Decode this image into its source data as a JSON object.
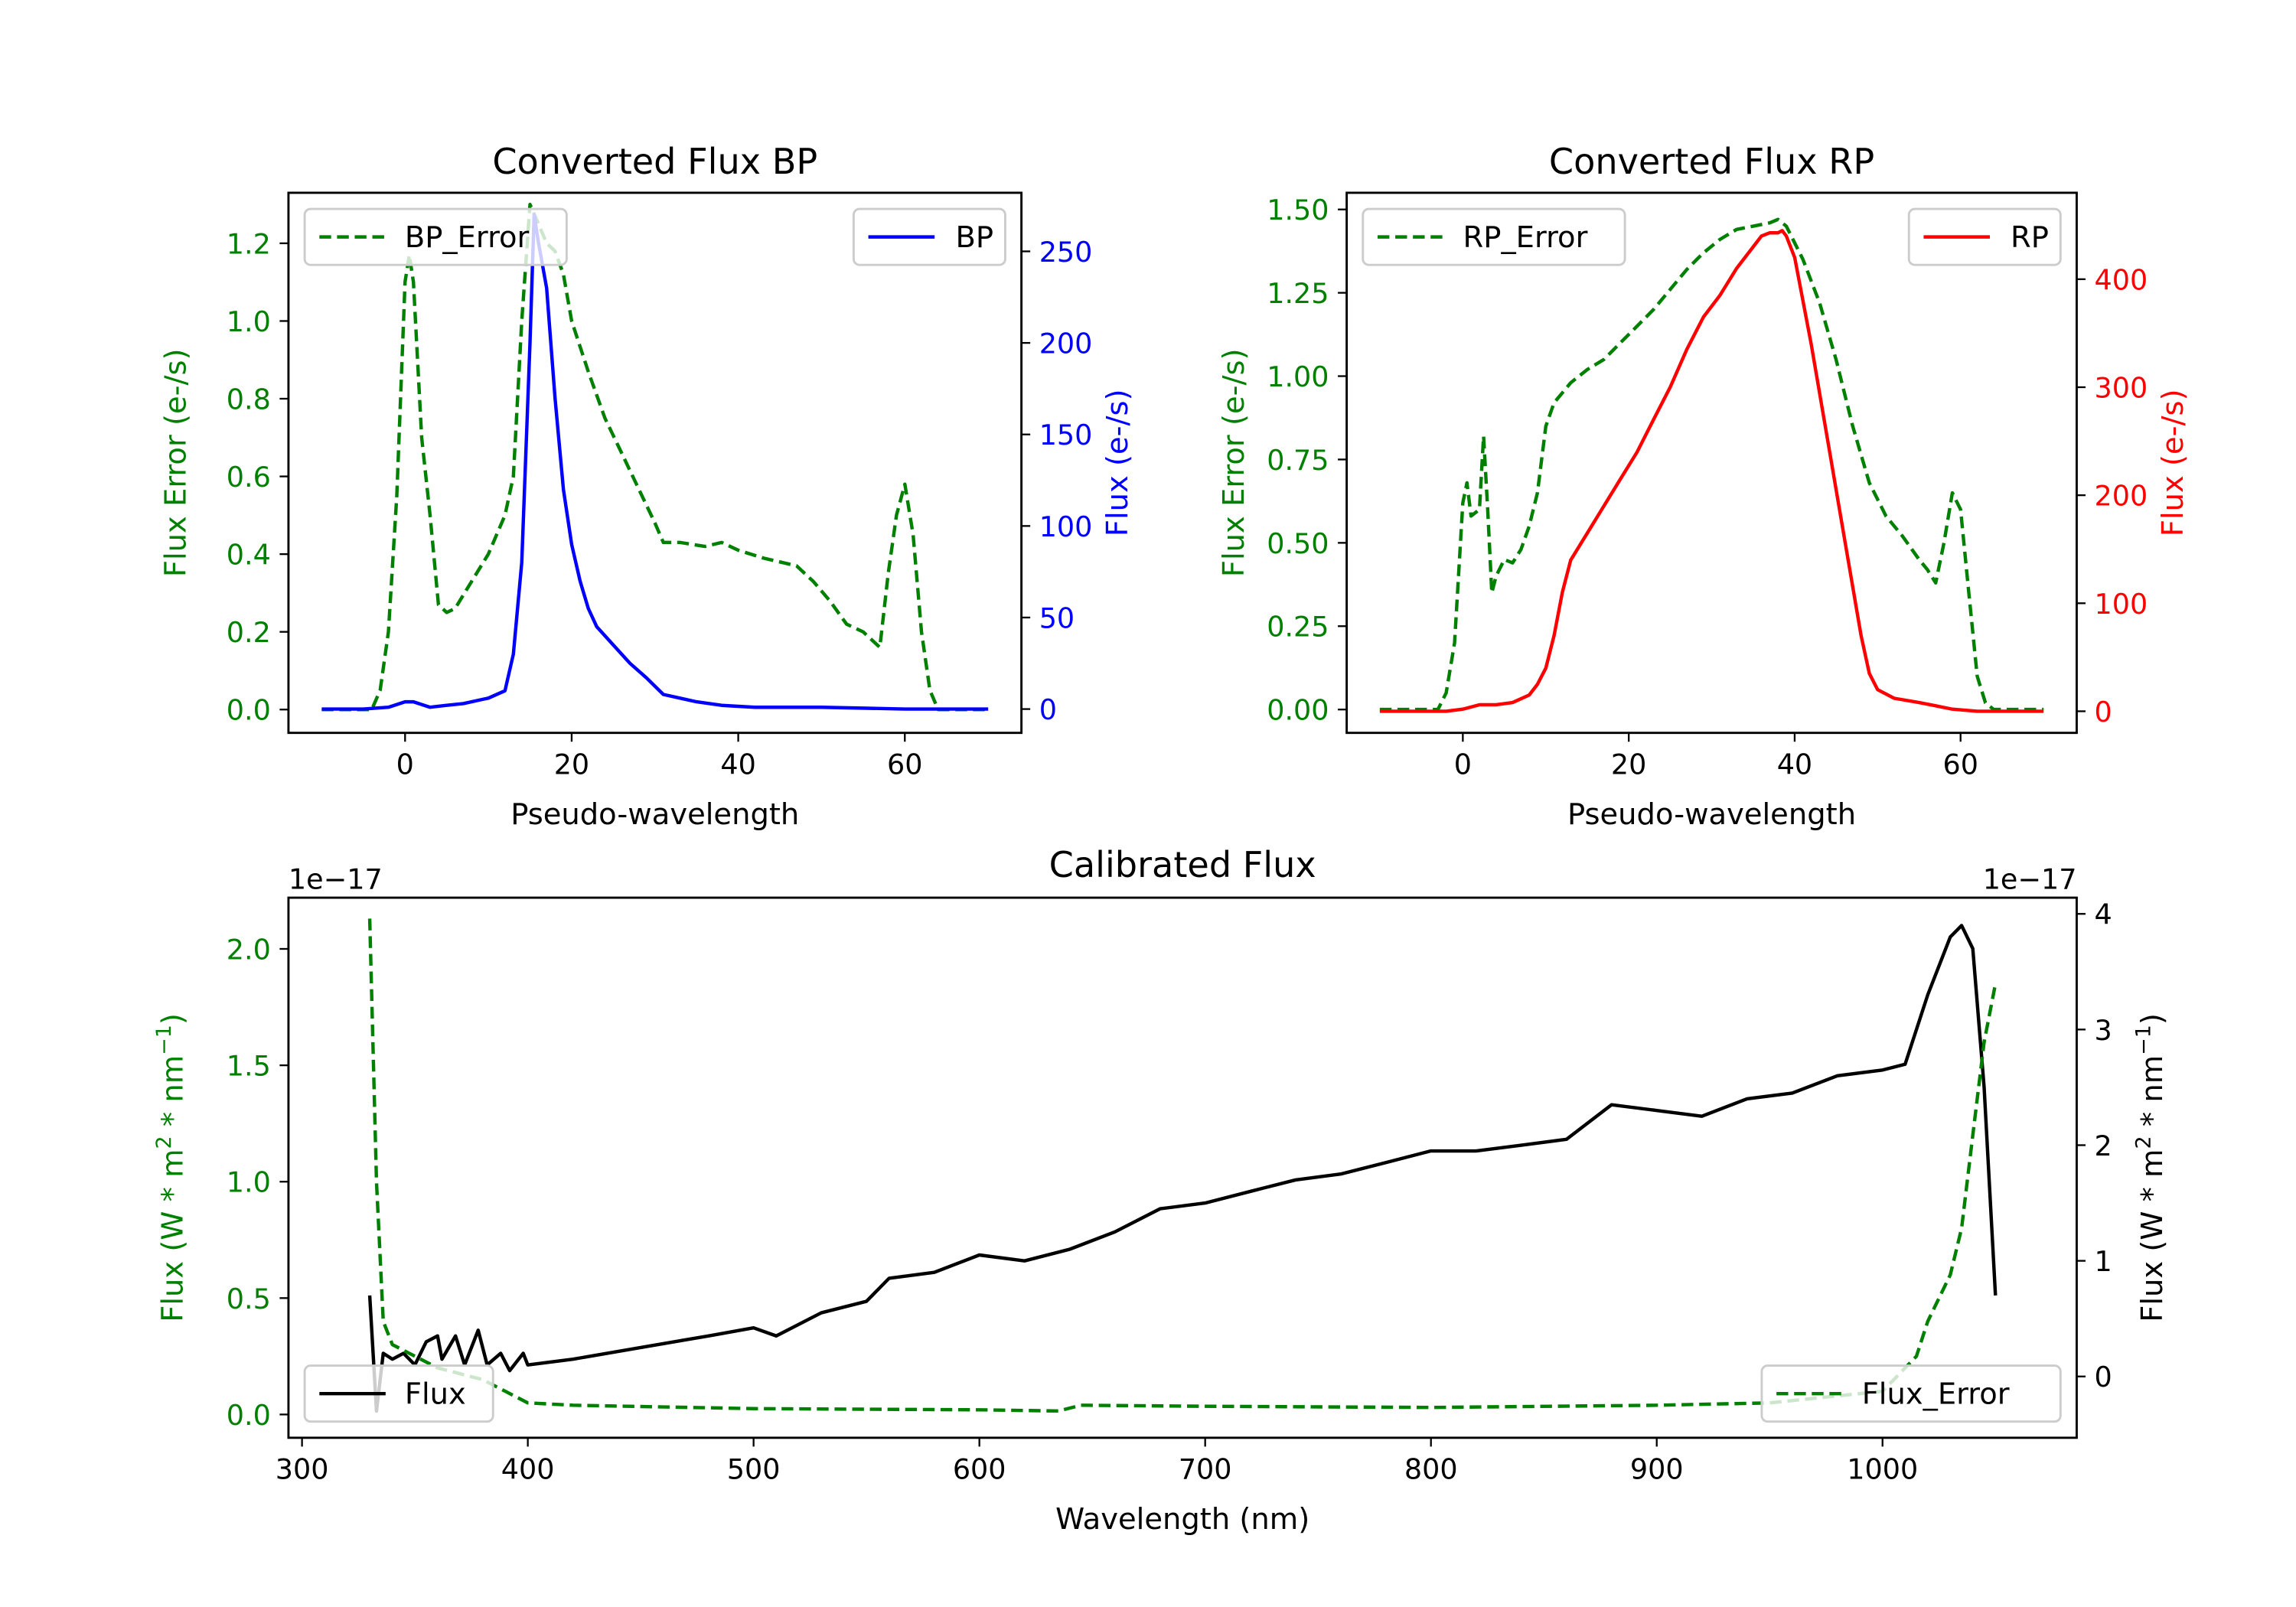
{
  "chart_data": [
    {
      "type": "line",
      "title": "Converted Flux BP",
      "xlabel": "Pseudo-wavelength",
      "ylabel_left": "Flux Error (e-/s)",
      "ylabel_right": "Flux (e-/s)",
      "xlim": [
        -14,
        74
      ],
      "ylim_left": [
        -0.06,
        1.33
      ],
      "ylim_right": [
        -13,
        282
      ],
      "xticks": [
        0,
        20,
        40,
        60
      ],
      "yticks_left": [
        "0.0",
        "0.2",
        "0.4",
        "0.6",
        "0.8",
        "1.0",
        "1.2"
      ],
      "yticks_right": [
        "0",
        "50",
        "100",
        "150",
        "200",
        "250"
      ],
      "left_color": "#008000",
      "right_color": "#0000ff",
      "legend_left": {
        "label": "BP_Error",
        "placement": "upper-left"
      },
      "legend_right": {
        "label": "BP",
        "placement": "upper-right"
      },
      "series": [
        {
          "name": "BP_Error",
          "axis": "left",
          "style": "dashed",
          "color": "#008000",
          "x": [
            -10,
            -4,
            -3,
            -2,
            -1,
            0,
            0.5,
            1,
            2,
            3,
            4,
            5,
            6,
            8,
            10,
            12,
            13,
            14,
            15,
            16,
            17,
            18,
            19,
            20,
            22,
            24,
            26,
            28,
            30,
            31,
            33,
            36,
            38,
            40,
            43,
            47,
            49,
            51,
            53,
            55,
            56,
            57,
            58,
            59,
            60,
            61,
            62,
            63,
            64,
            70
          ],
          "y": [
            0,
            0,
            0.05,
            0.2,
            0.55,
            1.1,
            1.17,
            1.1,
            0.7,
            0.5,
            0.27,
            0.25,
            0.26,
            0.33,
            0.4,
            0.5,
            0.6,
            1.0,
            1.3,
            1.25,
            1.2,
            1.18,
            1.12,
            1.0,
            0.87,
            0.75,
            0.66,
            0.57,
            0.48,
            0.43,
            0.43,
            0.42,
            0.43,
            0.41,
            0.39,
            0.37,
            0.33,
            0.28,
            0.22,
            0.2,
            0.18,
            0.16,
            0.35,
            0.5,
            0.58,
            0.45,
            0.2,
            0.05,
            0,
            0
          ]
        },
        {
          "name": "BP",
          "axis": "right",
          "style": "solid",
          "color": "#0000ff",
          "x": [
            -10,
            -5,
            -2,
            0,
            1,
            3,
            5,
            7,
            9,
            10,
            12,
            13,
            14,
            15,
            15.5,
            16,
            17,
            18,
            19,
            20,
            21,
            22,
            23,
            25,
            27,
            29,
            31,
            33,
            35,
            38,
            42,
            50,
            60,
            70
          ],
          "y": [
            0,
            0,
            1,
            4,
            4,
            1,
            2,
            3,
            5,
            6,
            10,
            30,
            80,
            200,
            270,
            255,
            230,
            170,
            120,
            90,
            70,
            55,
            45,
            35,
            25,
            17,
            8,
            6,
            4,
            2,
            1,
            1,
            0,
            0
          ]
        }
      ]
    },
    {
      "type": "line",
      "title": "Converted Flux RP",
      "xlabel": "Pseudo-wavelength",
      "ylabel_left": "Flux Error (e-/s)",
      "ylabel_right": "Flux (e-/s)",
      "xlim": [
        -14,
        74
      ],
      "ylim_left": [
        -0.07,
        1.55
      ],
      "ylim_right": [
        -20,
        480
      ],
      "xticks": [
        0,
        20,
        40,
        60
      ],
      "yticks_left": [
        "0.00",
        "0.25",
        "0.50",
        "0.75",
        "1.00",
        "1.25",
        "1.50"
      ],
      "yticks_right": [
        "0",
        "100",
        "200",
        "300",
        "400"
      ],
      "left_color": "#008000",
      "right_color": "#ff0000",
      "legend_left": {
        "label": "RP_Error",
        "placement": "upper-left"
      },
      "legend_right": {
        "label": "RP",
        "placement": "upper-right"
      },
      "series": [
        {
          "name": "RP_Error",
          "axis": "left",
          "style": "dashed",
          "color": "#008000",
          "x": [
            -10,
            -3,
            -2,
            -1,
            0,
            0.5,
            1,
            2,
            2.5,
            3,
            3.5,
            4,
            5,
            6,
            7,
            8,
            9,
            10,
            11,
            13,
            15,
            17,
            19,
            21,
            23,
            25,
            27,
            29,
            31,
            33,
            35,
            37,
            38,
            39,
            41,
            43,
            45,
            47,
            49,
            51,
            53,
            55,
            56,
            57,
            58,
            59,
            60,
            61,
            62,
            63,
            64,
            70
          ],
          "y": [
            0,
            0,
            0.05,
            0.2,
            0.62,
            0.68,
            0.58,
            0.6,
            0.82,
            0.6,
            0.35,
            0.4,
            0.45,
            0.44,
            0.48,
            0.55,
            0.65,
            0.85,
            0.92,
            0.98,
            1.02,
            1.05,
            1.1,
            1.15,
            1.2,
            1.26,
            1.32,
            1.37,
            1.41,
            1.44,
            1.45,
            1.46,
            1.47,
            1.45,
            1.35,
            1.22,
            1.05,
            0.85,
            0.68,
            0.58,
            0.52,
            0.45,
            0.42,
            0.38,
            0.5,
            0.65,
            0.6,
            0.35,
            0.1,
            0.02,
            0,
            0
          ]
        },
        {
          "name": "RP",
          "axis": "right",
          "style": "solid",
          "color": "#ff0000",
          "x": [
            -10,
            -2,
            0,
            2,
            4,
            6,
            8,
            9,
            10,
            11,
            12,
            13,
            15,
            17,
            19,
            21,
            23,
            25,
            27,
            29,
            31,
            33,
            35,
            36,
            37,
            38,
            38.5,
            39,
            40,
            42,
            44,
            46,
            48,
            49,
            50,
            52,
            55,
            57,
            59,
            62,
            70
          ],
          "y": [
            0,
            0,
            2,
            6,
            6,
            8,
            15,
            25,
            40,
            70,
            110,
            140,
            165,
            190,
            215,
            240,
            270,
            300,
            335,
            365,
            385,
            410,
            430,
            440,
            443,
            443,
            445,
            440,
            420,
            340,
            250,
            160,
            70,
            35,
            20,
            12,
            8,
            5,
            2,
            0,
            0
          ]
        }
      ]
    },
    {
      "type": "line",
      "title": "Calibrated Flux",
      "xlabel": "Wavelength (nm)",
      "ylabel_left_parts": [
        "Flux (W * m",
        "2",
        " * nm",
        "−1",
        ")"
      ],
      "ylabel_right_parts": [
        "Flux (W * m",
        "2",
        " * nm",
        "−1",
        ")"
      ],
      "offset_left": "1e−17",
      "offset_right": "1e−17",
      "xlim": [
        294,
        1086
      ],
      "ylim_left": [
        -0.1,
        2.22
      ],
      "ylim_right": [
        -0.53,
        4.14
      ],
      "xticks": [
        300,
        400,
        500,
        600,
        700,
        800,
        900,
        1000
      ],
      "yticks_left": [
        "0.0",
        "0.5",
        "1.0",
        "1.5",
        "2.0"
      ],
      "yticks_right": [
        "0",
        "1",
        "2",
        "3",
        "4"
      ],
      "left_color": "#008000",
      "right_color": "#000000",
      "legend_left": {
        "label": "Flux",
        "placement": "lower-left"
      },
      "legend_right": {
        "label": "Flux_Error",
        "placement": "lower-right"
      },
      "series": [
        {
          "name": "Flux",
          "axis": "right",
          "style": "solid",
          "color": "#000000",
          "x": [
            330,
            333,
            336,
            340,
            345,
            350,
            355,
            360,
            362,
            368,
            372,
            378,
            382,
            388,
            392,
            398,
            400,
            420,
            450,
            480,
            500,
            510,
            530,
            550,
            560,
            580,
            600,
            620,
            640,
            660,
            680,
            700,
            720,
            740,
            760,
            780,
            800,
            820,
            840,
            860,
            880,
            900,
            920,
            940,
            960,
            980,
            1000,
            1010,
            1020,
            1030,
            1035,
            1040,
            1045,
            1050
          ],
          "y": [
            0.7,
            -0.3,
            0.2,
            0.15,
            0.2,
            0.1,
            0.3,
            0.35,
            0.15,
            0.35,
            0.1,
            0.4,
            0.1,
            0.2,
            0.05,
            0.2,
            0.1,
            0.15,
            0.25,
            0.35,
            0.42,
            0.35,
            0.55,
            0.65,
            0.85,
            0.9,
            1.05,
            1.0,
            1.1,
            1.25,
            1.45,
            1.5,
            1.6,
            1.7,
            1.75,
            1.85,
            1.95,
            1.95,
            2.0,
            2.05,
            2.35,
            2.3,
            2.25,
            2.4,
            2.45,
            2.6,
            2.65,
            2.7,
            3.3,
            3.8,
            3.9,
            3.7,
            2.5,
            0.7
          ]
        },
        {
          "name": "Flux_Error",
          "axis": "left",
          "style": "dashed",
          "color": "#008000",
          "x": [
            330,
            333,
            336,
            340,
            360,
            380,
            390,
            400,
            420,
            500,
            600,
            635,
            645,
            700,
            800,
            900,
            950,
            1000,
            1015,
            1020,
            1030,
            1035,
            1040,
            1045,
            1050
          ],
          "y": [
            2.13,
            1.0,
            0.4,
            0.3,
            0.2,
            0.15,
            0.1,
            0.05,
            0.04,
            0.025,
            0.02,
            0.015,
            0.04,
            0.035,
            0.03,
            0.04,
            0.05,
            0.1,
            0.25,
            0.4,
            0.6,
            0.8,
            1.2,
            1.6,
            1.85
          ]
        }
      ]
    }
  ]
}
